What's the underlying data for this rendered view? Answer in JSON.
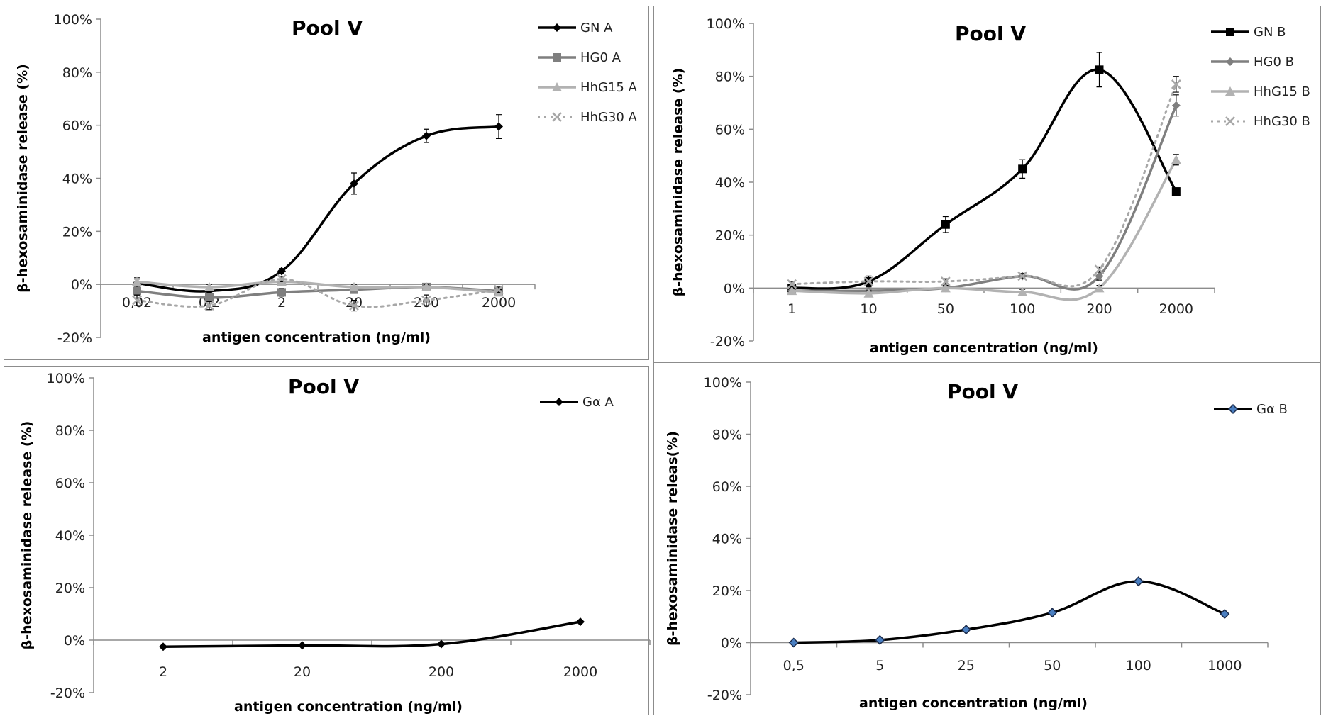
{
  "chart_data": [
    {
      "type": "line",
      "title": "Pool V",
      "xlabel": "antigen concentration (ng/ml)",
      "ylabel": "β-hexosaminidase release (%)",
      "ylim": [
        -20,
        100
      ],
      "yticks": [
        "-20%",
        "0%",
        "20%",
        "40%",
        "60%",
        "80%",
        "100%"
      ],
      "categories": [
        "0,02",
        "0,2",
        "2",
        "20",
        "200",
        "2000"
      ],
      "legend_position": "top-right",
      "grid": false,
      "series": [
        {
          "name": "GN A",
          "values": [
            0.5,
            -2.5,
            5,
            38,
            56,
            59.5
          ],
          "errors": [
            2,
            1.5,
            1,
            4,
            2.5,
            4.5
          ],
          "color": "#000000",
          "marker": "diamond",
          "dash": false,
          "width": 3.5
        },
        {
          "name": "HG0 A",
          "values": [
            -2.5,
            -5,
            -3,
            -2,
            -1,
            -2.5
          ],
          "errors": [
            1.5,
            1.5,
            1.5,
            1,
            1,
            1
          ],
          "color": "#7f7f7f",
          "marker": "square",
          "dash": false,
          "width": 3.5
        },
        {
          "name": "HhG15 A",
          "values": [
            1,
            -1,
            1,
            -1,
            -1,
            -3
          ],
          "errors": [
            1,
            1,
            1,
            1,
            1,
            1
          ],
          "color": "#b2b2b2",
          "marker": "triangle",
          "dash": false,
          "width": 3.5
        },
        {
          "name": "HhG30 A",
          "values": [
            -6,
            -8,
            2,
            -8,
            -6,
            -2
          ],
          "errors": [
            2,
            1.5,
            1,
            2,
            2,
            1
          ],
          "color": "#a8a8a8",
          "marker": "cross",
          "dash": true,
          "width": 3
        }
      ]
    },
    {
      "type": "line",
      "title": "Pool V",
      "xlabel": "antigen concentration (ng/ml)",
      "ylabel": "β-hexosaminidase release (%)",
      "ylim": [
        -20,
        100
      ],
      "yticks": [
        "-20%",
        "0%",
        "20%",
        "40%",
        "60%",
        "80%",
        "100%"
      ],
      "categories": [
        "1",
        "10",
        "50",
        "100",
        "200",
        "2000"
      ],
      "legend_position": "top-right",
      "grid": false,
      "series": [
        {
          "name": "GN B",
          "values": [
            0,
            2.5,
            24,
            45,
            82.5,
            36.5
          ],
          "errors": [
            1.5,
            2,
            3,
            3.5,
            6.5,
            1
          ],
          "color": "#000000",
          "marker": "square",
          "dash": false,
          "width": 3.5
        },
        {
          "name": "HG0 B",
          "values": [
            -1,
            -1,
            0,
            4.5,
            4.5,
            69
          ],
          "errors": [
            1,
            1.5,
            1,
            1,
            1.5,
            4
          ],
          "color": "#7f7f7f",
          "marker": "diamond",
          "dash": false,
          "width": 3.5
        },
        {
          "name": "HhG15 B",
          "values": [
            -1,
            -2,
            0,
            -1.5,
            0,
            48.5
          ],
          "errors": [
            1,
            1,
            1,
            1,
            1,
            2
          ],
          "color": "#b2b2b2",
          "marker": "triangle",
          "dash": false,
          "width": 3.5
        },
        {
          "name": "HhG30 B",
          "values": [
            1.5,
            2.5,
            2.5,
            4.5,
            7,
            77
          ],
          "errors": [
            1,
            2,
            1,
            1,
            1,
            3
          ],
          "color": "#a8a8a8",
          "marker": "cross",
          "dash": true,
          "width": 3
        }
      ]
    },
    {
      "type": "line",
      "title": "Pool V",
      "xlabel": "antigen concentration (ng/ml)",
      "ylabel": "β-hexosaminidase release (%)",
      "ylim": [
        -20,
        100
      ],
      "yticks": [
        "-20%",
        "0%",
        "20%",
        "40%",
        "60%",
        "80%",
        "100%"
      ],
      "categories": [
        "2",
        "20",
        "200",
        "2000"
      ],
      "legend_position": "top-right",
      "grid": false,
      "series": [
        {
          "name": "Gα A",
          "values": [
            -2.5,
            -2,
            -1.5,
            7
          ],
          "color": "#000000",
          "marker": "diamond",
          "dash": false,
          "width": 3.5
        }
      ]
    },
    {
      "type": "line",
      "title": "Pool V",
      "xlabel": "antigen concentration (ng/ml)",
      "ylabel": "β-hexosaminidase releas(%)",
      "ylim": [
        -20,
        100
      ],
      "yticks": [
        "-20%",
        "0%",
        "20%",
        "40%",
        "60%",
        "80%",
        "100%"
      ],
      "categories": [
        "0,5",
        "5",
        "25",
        "50",
        "100",
        "1000"
      ],
      "legend_position": "top-right",
      "grid": false,
      "series": [
        {
          "name": "Gα B",
          "values": [
            0,
            1,
            5,
            11.5,
            23.5,
            11
          ],
          "color": "#000000",
          "marker": "diamond-blue",
          "dash": false,
          "width": 3.5
        }
      ]
    }
  ]
}
